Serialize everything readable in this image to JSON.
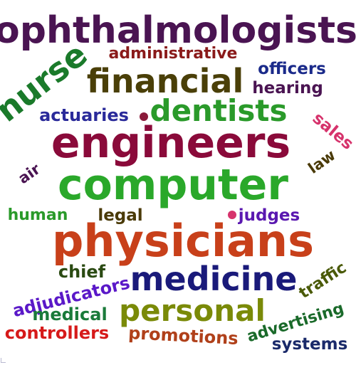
{
  "words": [
    {
      "text": "ophthalmologists",
      "color": "#4a1452"
    },
    {
      "text": "administrative",
      "color": "#8a1a1a"
    },
    {
      "text": "nurse",
      "color": "#1a7a2a"
    },
    {
      "text": "financial",
      "color": "#4a3f08"
    },
    {
      "text": "officers",
      "color": "#1a2a8a"
    },
    {
      "text": "hearing",
      "color": "#4a1452"
    },
    {
      "text": "actuaries",
      "color": "#2a2a9a"
    },
    {
      "text": "dentists",
      "color": "#2a9a2a"
    },
    {
      "text": "sales",
      "color": "#d6336c"
    },
    {
      "text": "engineers",
      "color": "#8a0a3a"
    },
    {
      "text": "law",
      "color": "#4a3a08"
    },
    {
      "text": "air",
      "color": "#4a1452"
    },
    {
      "text": "computer",
      "color": "#2aa82a"
    },
    {
      "text": "human",
      "color": "#2a9a2a"
    },
    {
      "text": "legal",
      "color": "#4a3a08"
    },
    {
      "text": "judges",
      "color": "#5a18b0"
    },
    {
      "text": "physicians",
      "color": "#c8401a"
    },
    {
      "text": "chief",
      "color": "#2a4a12"
    },
    {
      "text": "medicine",
      "color": "#1a1a7a"
    },
    {
      "text": "traffic",
      "color": "#4a5a08"
    },
    {
      "text": "adjudicators",
      "color": "#5a18c8"
    },
    {
      "text": "medical",
      "color": "#1a7a3a"
    },
    {
      "text": "personal",
      "color": "#7a8a08"
    },
    {
      "text": "advertising",
      "color": "#1a6a2a"
    },
    {
      "text": "controllers",
      "color": "#d61a1a"
    },
    {
      "text": "promotions",
      "color": "#b0401a"
    },
    {
      "text": "systems",
      "color": "#1a2a6a"
    }
  ],
  "dots": [
    {
      "color": "#8a1a3a"
    },
    {
      "color": "#d6336c"
    }
  ]
}
